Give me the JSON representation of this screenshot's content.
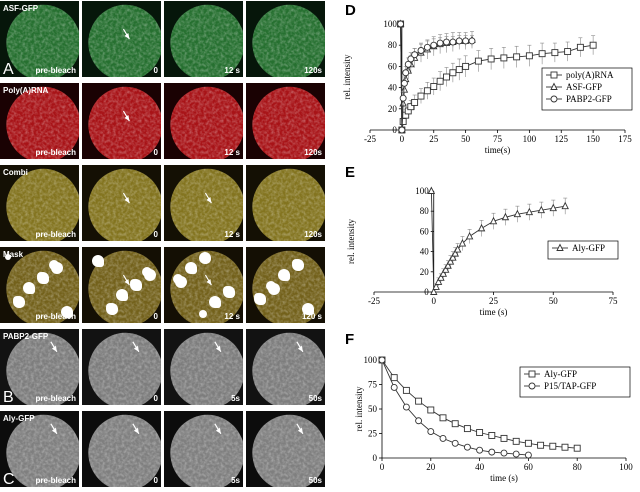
{
  "micrograph": {
    "rows": [
      {
        "stain": "ASF-GFP",
        "tint": "#2a7a34",
        "bg": "#06160a",
        "timepoints": [
          "pre-bleach",
          "0",
          "12 s",
          "120s"
        ],
        "arrow_cols": [
          1
        ],
        "panel_letter": "A"
      },
      {
        "stain": "Poly(A)RNA",
        "tint": "#b8151a",
        "bg": "#1a0203",
        "timepoints": [
          "pre-bleach",
          "0",
          "12 s",
          "120s"
        ],
        "arrow_cols": [
          1
        ],
        "panel_letter": ""
      },
      {
        "stain": "Combi",
        "tint": "#8f7f22",
        "bg": "#141004",
        "timepoints": [
          "pre-bleach",
          "0",
          "12 s",
          "120s"
        ],
        "arrow_cols": [
          1,
          2
        ],
        "panel_letter": ""
      },
      {
        "stain": "Mask",
        "tint": "#7d6a1e",
        "bg": "#140f04",
        "timepoints": [
          "pre-bleach",
          "0",
          "12 s",
          "120 s"
        ],
        "arrow_cols": [
          1,
          2
        ],
        "panel_letter": ""
      },
      {
        "stain": "PABP2-GFP",
        "tint": "#8a8a8a",
        "bg": "#121212",
        "timepoints": [
          "pre-bleach",
          "0",
          "5s",
          "50s"
        ],
        "arrow_cols": [
          0,
          1,
          2,
          3
        ],
        "panel_letter": "B"
      },
      {
        "stain": "Aly-GFP",
        "tint": "#8c8c8c",
        "bg": "#0c0c0c",
        "timepoints": [
          "pre-bleach",
          "0",
          "5s",
          "50s"
        ],
        "arrow_cols": [
          0,
          1,
          2,
          3
        ],
        "panel_letter": "C"
      }
    ]
  },
  "chart_data": [
    {
      "panel": "D",
      "type": "line",
      "xlabel": "time(s)",
      "ylabel": "rel. intensity",
      "xlim": [
        -25,
        175
      ],
      "ylim": [
        0,
        100
      ],
      "xticks": [
        -25,
        0,
        25,
        50,
        75,
        100,
        125,
        150,
        175
      ],
      "yticks": [
        0,
        20,
        40,
        60,
        80,
        100
      ],
      "legend_position": "right",
      "series": [
        {
          "name": "poly(A)RNA",
          "marker": "square",
          "x": [
            -1,
            0,
            1,
            3,
            5,
            7,
            10,
            15,
            20,
            25,
            30,
            35,
            40,
            45,
            50,
            60,
            70,
            80,
            90,
            100,
            110,
            120,
            130,
            140,
            150
          ],
          "y": [
            100,
            0,
            8,
            14,
            18,
            22,
            26,
            32,
            37,
            41,
            46,
            50,
            54,
            57,
            60,
            65,
            67,
            68,
            69,
            70,
            72,
            73,
            74,
            78,
            80
          ],
          "err": [
            0,
            0,
            4,
            5,
            6,
            6,
            7,
            7,
            8,
            8,
            9,
            9,
            9,
            10,
            10,
            10,
            10,
            10,
            10,
            10,
            10,
            9,
            9,
            9,
            9
          ]
        },
        {
          "name": "ASF-GFP",
          "marker": "triangle",
          "x": [
            -1,
            0,
            1,
            2,
            3,
            5,
            7,
            10,
            15,
            20,
            25,
            30,
            35,
            40,
            45,
            50,
            55
          ],
          "y": [
            100,
            0,
            25,
            38,
            48,
            56,
            62,
            68,
            73,
            76,
            79,
            81,
            82,
            83,
            84,
            84,
            85
          ],
          "err": [
            0,
            0,
            6,
            7,
            7,
            8,
            8,
            9,
            9,
            9,
            9,
            9,
            9,
            9,
            8,
            8,
            8
          ]
        },
        {
          "name": "PABP2-GFP",
          "marker": "circle",
          "x": [
            -1,
            0,
            1,
            2,
            3,
            5,
            7,
            10,
            15,
            20,
            25,
            30,
            35,
            40,
            45,
            50,
            55
          ],
          "y": [
            100,
            0,
            30,
            44,
            54,
            62,
            67,
            71,
            75,
            78,
            80,
            82,
            83,
            83,
            84,
            84,
            84
          ],
          "err": [
            0,
            0,
            6,
            6,
            6,
            6,
            6,
            6,
            6,
            6,
            6,
            5,
            5,
            5,
            5,
            5,
            5
          ]
        }
      ]
    },
    {
      "panel": "E",
      "type": "line",
      "xlabel": "time (s)",
      "ylabel": "rel. intensity",
      "xlim": [
        -25,
        75
      ],
      "ylim": [
        0,
        100
      ],
      "xticks": [
        -25,
        0,
        25,
        50,
        75
      ],
      "yticks": [
        0,
        20,
        40,
        60,
        80,
        100
      ],
      "legend_position": "right",
      "series": [
        {
          "name": "Aly-GFP",
          "marker": "triangle",
          "x": [
            -1,
            0,
            1,
            2,
            3,
            4,
            5,
            6,
            7,
            8,
            9,
            10,
            12,
            15,
            20,
            25,
            30,
            35,
            40,
            45,
            50,
            55
          ],
          "y": [
            100,
            0,
            5,
            10,
            14,
            18,
            22,
            26,
            30,
            34,
            38,
            42,
            48,
            55,
            63,
            70,
            74,
            77,
            79,
            81,
            83,
            85
          ],
          "err": [
            0,
            0,
            3,
            4,
            4,
            5,
            5,
            5,
            6,
            6,
            6,
            6,
            7,
            7,
            8,
            8,
            8,
            8,
            8,
            8,
            8,
            8
          ]
        }
      ]
    },
    {
      "panel": "F",
      "type": "line",
      "xlabel": "time (s)",
      "ylabel": "rel. intensity",
      "xlim": [
        0,
        100
      ],
      "ylim": [
        0,
        100
      ],
      "xticks": [
        0,
        20,
        40,
        60,
        80,
        100
      ],
      "yticks": [
        0,
        25,
        50,
        75,
        100
      ],
      "legend_position": "top-right",
      "series": [
        {
          "name": "Aly-GFP",
          "marker": "square",
          "x": [
            0,
            5,
            10,
            15,
            20,
            25,
            30,
            35,
            40,
            45,
            50,
            55,
            60,
            65,
            70,
            75,
            80
          ],
          "y": [
            100,
            82,
            69,
            58,
            49,
            41,
            35,
            30,
            26,
            23,
            20,
            17,
            15,
            13,
            12,
            11,
            10
          ]
        },
        {
          "name": "P15/TAP-GFP",
          "marker": "circle",
          "x": [
            0,
            5,
            10,
            15,
            20,
            25,
            30,
            35,
            40,
            45,
            50,
            55,
            60
          ],
          "y": [
            100,
            72,
            52,
            38,
            27,
            20,
            15,
            11,
            8,
            6,
            5,
            4,
            3
          ]
        }
      ]
    }
  ]
}
